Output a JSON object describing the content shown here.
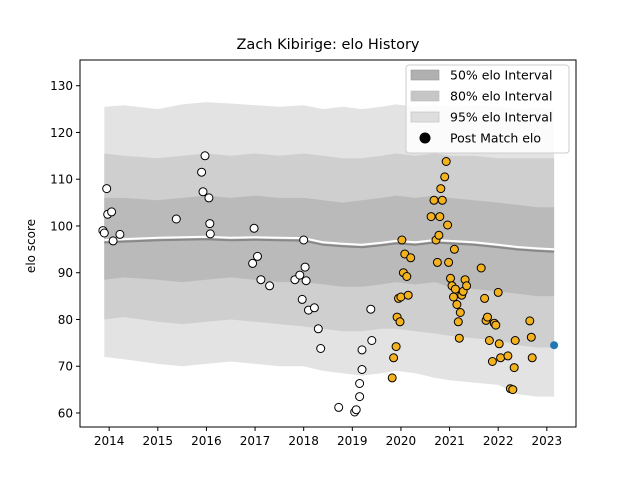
{
  "chart_data": {
    "type": "scatter",
    "title": "Zach Kibirige: elo History",
    "xlabel": "",
    "ylabel": "elo score",
    "xlim": [
      2013.4,
      2023.6
    ],
    "ylim": [
      57,
      135.5
    ],
    "x_ticks": [
      2014,
      2015,
      2016,
      2017,
      2018,
      2019,
      2020,
      2021,
      2022,
      2023
    ],
    "y_ticks": [
      60,
      70,
      80,
      90,
      100,
      110,
      120,
      130
    ],
    "legend_position": "upper right",
    "legend": [
      {
        "label": "50% elo Interval",
        "color": "#b0b0b0"
      },
      {
        "label": "80% elo Interval",
        "color": "#c6c6c6"
      },
      {
        "label": "95% elo Interval",
        "color": "#dedede"
      },
      {
        "label": "Post Match elo",
        "color": "#000000"
      }
    ],
    "colors": {
      "band95": "#e3e3e3",
      "band80": "#cfcfcf",
      "band50": "#bababa",
      "mean_line": "#ffffff",
      "mean_shadow": "#888888",
      "old_point": "#ffffff",
      "recent_point": "#f5b21f",
      "latest_point": "#1f77b4"
    },
    "bands": {
      "x": [
        2013.9,
        2014.3,
        2015.0,
        2015.5,
        2016.0,
        2016.5,
        2017.0,
        2017.5,
        2018.0,
        2018.4,
        2018.8,
        2019.2,
        2019.6,
        2019.9,
        2020.3,
        2020.7,
        2021.0,
        2021.5,
        2022.0,
        2022.4,
        2022.8,
        2023.15
      ],
      "p95_high": [
        125.5,
        125.8,
        125.0,
        126.0,
        126.5,
        126.2,
        125.8,
        125.5,
        125.8,
        125.0,
        125.5,
        125.0,
        125.5,
        126.0,
        125.5,
        126.0,
        125.5,
        125.8,
        125.5,
        125.0,
        125.2,
        125.0
      ],
      "p95_low": [
        72.0,
        71.5,
        70.5,
        70.0,
        70.5,
        71.0,
        70.5,
        70.0,
        70.0,
        69.0,
        68.5,
        68.0,
        68.5,
        69.0,
        68.5,
        67.5,
        67.0,
        66.5,
        66.0,
        64.0,
        63.5,
        63.5
      ],
      "p80_high": [
        115.5,
        115.0,
        114.5,
        115.0,
        115.5,
        115.0,
        115.5,
        115.0,
        115.5,
        115.0,
        114.5,
        114.5,
        115.0,
        115.5,
        115.0,
        115.5,
        115.0,
        115.0,
        114.5,
        114.5,
        114.5,
        114.5
      ],
      "p80_low": [
        80.0,
        80.5,
        79.5,
        79.0,
        79.5,
        80.0,
        79.5,
        79.0,
        78.5,
        78.0,
        77.5,
        77.5,
        78.0,
        78.0,
        77.5,
        77.0,
        76.5,
        76.0,
        75.5,
        74.5,
        74.0,
        74.0
      ],
      "p50_high": [
        106.0,
        106.0,
        105.5,
        106.0,
        106.5,
        106.0,
        106.5,
        106.0,
        106.0,
        105.5,
        105.0,
        105.5,
        106.0,
        106.5,
        106.0,
        106.5,
        106.0,
        105.5,
        105.0,
        104.5,
        104.0,
        104.0
      ],
      "p50_low": [
        88.5,
        89.0,
        88.5,
        88.0,
        88.5,
        89.0,
        88.5,
        88.0,
        88.0,
        87.5,
        87.0,
        87.0,
        87.5,
        88.0,
        87.5,
        88.0,
        87.0,
        86.5,
        86.0,
        85.5,
        85.0,
        85.0
      ],
      "mean": [
        97.0,
        97.2,
        97.5,
        97.6,
        97.7,
        97.5,
        97.6,
        97.5,
        97.4,
        96.5,
        96.2,
        96.0,
        96.4,
        96.8,
        96.5,
        97.0,
        96.8,
        96.5,
        96.0,
        95.5,
        95.2,
        95.0
      ]
    },
    "series": [
      {
        "x": [
          2013.87,
          2013.9,
          2013.95,
          2013.97,
          2014.05,
          2014.08,
          2014.22,
          2015.38,
          2015.9,
          2015.93,
          2015.97,
          2016.05,
          2016.07,
          2016.08,
          2016.95,
          2016.98,
          2017.05,
          2017.12,
          2017.3,
          2017.82,
          2017.92,
          2017.97,
          2018.0,
          2018.03,
          2018.05,
          2018.1,
          2018.22,
          2018.3,
          2018.35,
          2018.72,
          2019.05,
          2019.08,
          2019.15,
          2019.15,
          2019.2,
          2019.2,
          2019.38,
          2019.4
        ],
        "y": [
          99.0,
          98.5,
          108.0,
          102.5,
          103.0,
          96.8,
          98.2,
          101.5,
          111.5,
          107.3,
          115.0,
          106.0,
          100.5,
          98.3,
          92.0,
          99.5,
          93.5,
          88.5,
          87.2,
          88.5,
          89.5,
          84.3,
          97.0,
          91.2,
          88.3,
          82.0,
          82.5,
          78.0,
          73.8,
          61.2,
          60.2,
          60.7,
          66.3,
          63.5,
          69.3,
          73.5,
          82.2,
          75.5
        ]
      },
      {
        "x": [
          2019.82,
          2019.85,
          2019.9,
          2019.92,
          2019.95,
          2019.98,
          2020.0,
          2020.02,
          2020.05,
          2020.08,
          2020.12,
          2020.15,
          2020.2,
          2020.62,
          2020.68,
          2020.72,
          2020.75,
          2020.78,
          2020.8,
          2020.82,
          2020.85,
          2020.9,
          2020.93,
          2020.96,
          2020.98,
          2021.02,
          2021.05,
          2021.08,
          2021.1,
          2021.12,
          2021.15,
          2021.18,
          2021.2,
          2021.22,
          2021.25,
          2021.28,
          2021.32,
          2021.35,
          2021.65,
          2021.72,
          2021.75,
          2021.78,
          2021.82,
          2021.88,
          2021.92,
          2021.95,
          2022.0,
          2022.02,
          2022.05,
          2022.2,
          2022.25,
          2022.3,
          2022.33,
          2022.35,
          2022.65,
          2022.68,
          2022.7
        ],
        "y": [
          67.5,
          71.8,
          74.2,
          80.5,
          84.5,
          79.5,
          84.8,
          97.0,
          90.0,
          94.0,
          89.2,
          85.2,
          93.2,
          102.0,
          105.5,
          97.0,
          92.2,
          98.0,
          102.0,
          108.0,
          105.5,
          110.5,
          113.8,
          100.2,
          92.2,
          88.8,
          87.2,
          84.8,
          95.0,
          86.5,
          83.2,
          79.5,
          76.0,
          81.5,
          85.2,
          86.0,
          88.5,
          87.2,
          91.0,
          84.5,
          79.8,
          80.5,
          75.5,
          71.0,
          79.2,
          78.8,
          85.8,
          74.8,
          71.8,
          72.2,
          65.2,
          65.0,
          69.7,
          75.5,
          79.7,
          76.2,
          71.8
        ]
      },
      {
        "x": [
          2023.15
        ],
        "y": [
          74.5
        ]
      }
    ]
  }
}
